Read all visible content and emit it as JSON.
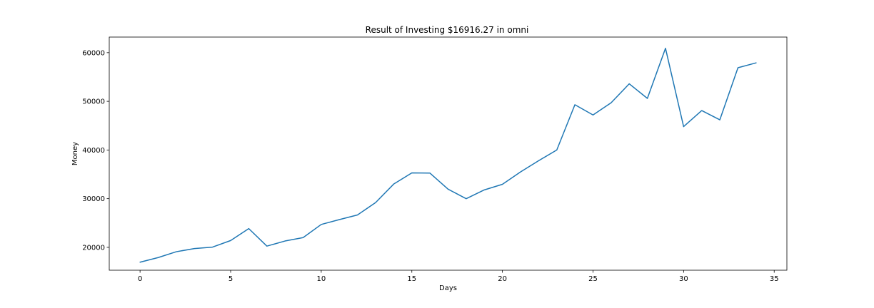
{
  "chart_data": {
    "type": "line",
    "title": "Result of Investing $16916.27 in omni",
    "xlabel": "Days",
    "ylabel": "Money",
    "xlim": [
      -1.7,
      35.7
    ],
    "ylim": [
      15300,
      63200
    ],
    "x_ticks": [
      0,
      5,
      10,
      15,
      20,
      25,
      30,
      35
    ],
    "y_ticks": [
      20000,
      30000,
      40000,
      50000,
      60000
    ],
    "x_tick_labels": [
      "0",
      "5",
      "10",
      "15",
      "20",
      "25",
      "30",
      "35"
    ],
    "y_tick_labels": [
      "20000",
      "30000",
      "40000",
      "50000",
      "60000"
    ],
    "grid": false,
    "legend": "none",
    "series": [
      {
        "color": "#1f77b4",
        "x": [
          0,
          1,
          2,
          3,
          4,
          5,
          6,
          7,
          8,
          9,
          10,
          11,
          12,
          13,
          14,
          15,
          16,
          17,
          18,
          19,
          20,
          21,
          22,
          23,
          24,
          25,
          26,
          27,
          28,
          29,
          30,
          31,
          32,
          33,
          34
        ],
        "y": [
          16950,
          17900,
          19100,
          19750,
          20050,
          21400,
          23850,
          20250,
          21300,
          22000,
          24700,
          25700,
          26650,
          29200,
          33000,
          35300,
          35250,
          31950,
          30000,
          31800,
          32950,
          35500,
          37800,
          40000,
          49300,
          47200,
          49700,
          53600,
          50600,
          60900,
          44800,
          48100,
          46200,
          56900,
          57900
        ]
      }
    ]
  }
}
